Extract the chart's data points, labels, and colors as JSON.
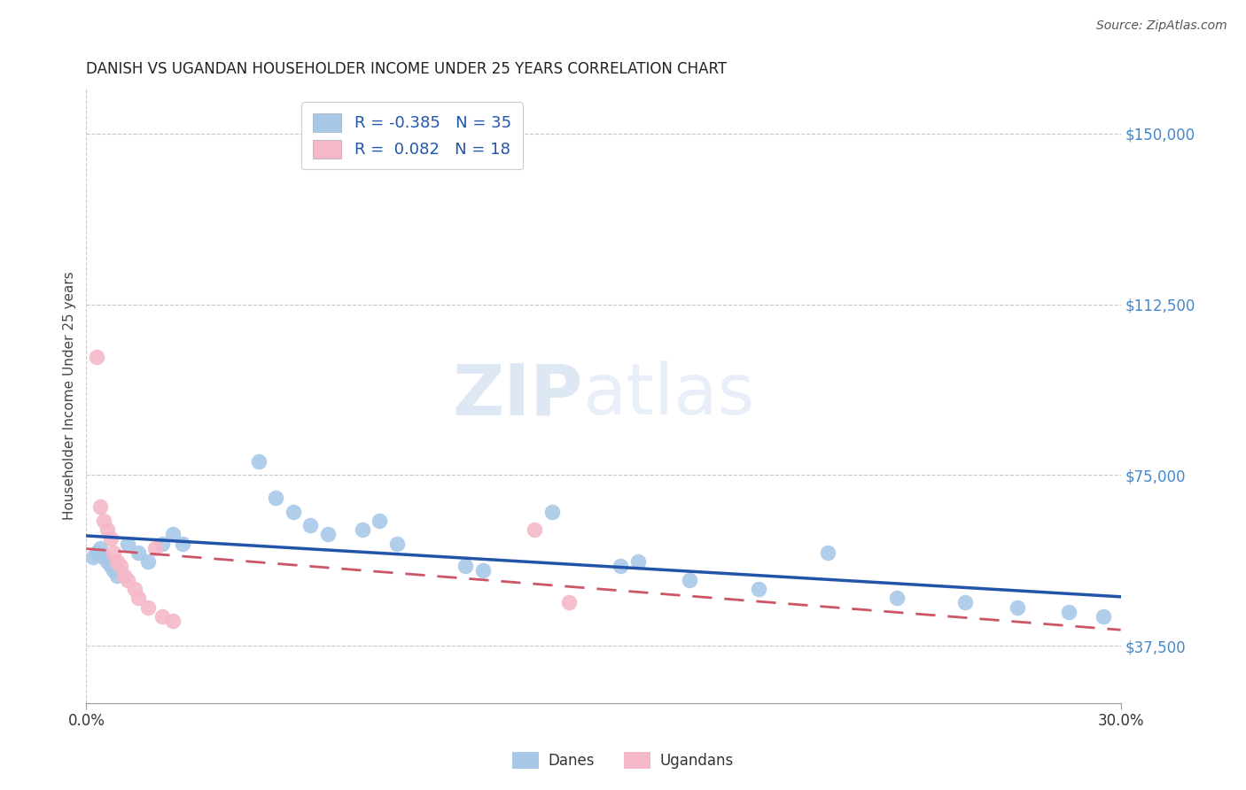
{
  "title": "DANISH VS UGANDAN HOUSEHOLDER INCOME UNDER 25 YEARS CORRELATION CHART",
  "source": "Source: ZipAtlas.com",
  "ylabel": "Householder Income Under 25 years",
  "xlim": [
    0.0,
    0.3
  ],
  "ylim": [
    25000,
    160000
  ],
  "yticks": [
    37500,
    75000,
    112500,
    150000
  ],
  "ytick_labels": [
    "$37,500",
    "$75,000",
    "$112,500",
    "$150,000"
  ],
  "danes_color": "#a8c8e8",
  "ugandans_color": "#f5b8c8",
  "dane_trend_color": "#2255aa",
  "ugandan_trend_color": "#cc5566",
  "watermark_zip": "ZIP",
  "watermark_atlas": "atlas",
  "background_color": "#ffffff",
  "danes_x": [
    0.002,
    0.003,
    0.004,
    0.005,
    0.006,
    0.007,
    0.008,
    0.009,
    0.012,
    0.015,
    0.018,
    0.022,
    0.025,
    0.028,
    0.05,
    0.055,
    0.06,
    0.065,
    0.07,
    0.08,
    0.085,
    0.09,
    0.11,
    0.115,
    0.135,
    0.155,
    0.16,
    0.175,
    0.195,
    0.215,
    0.235,
    0.255,
    0.27,
    0.285,
    0.295
  ],
  "danes_y": [
    57000,
    58000,
    59000,
    57000,
    56000,
    55000,
    54000,
    53000,
    60000,
    58000,
    56000,
    60000,
    62000,
    60000,
    78000,
    70000,
    67000,
    64000,
    62000,
    63000,
    65000,
    60000,
    55000,
    54000,
    67000,
    55000,
    56000,
    52000,
    50000,
    58000,
    48000,
    47000,
    46000,
    45000,
    44000
  ],
  "ugandans_x": [
    0.003,
    0.004,
    0.005,
    0.006,
    0.007,
    0.008,
    0.009,
    0.01,
    0.011,
    0.012,
    0.014,
    0.015,
    0.018,
    0.02,
    0.022,
    0.025,
    0.13,
    0.14
  ],
  "ugandans_y": [
    101000,
    68000,
    65000,
    63000,
    61000,
    58000,
    56000,
    55000,
    53000,
    52000,
    50000,
    48000,
    46000,
    59000,
    44000,
    43000,
    63000,
    47000
  ]
}
